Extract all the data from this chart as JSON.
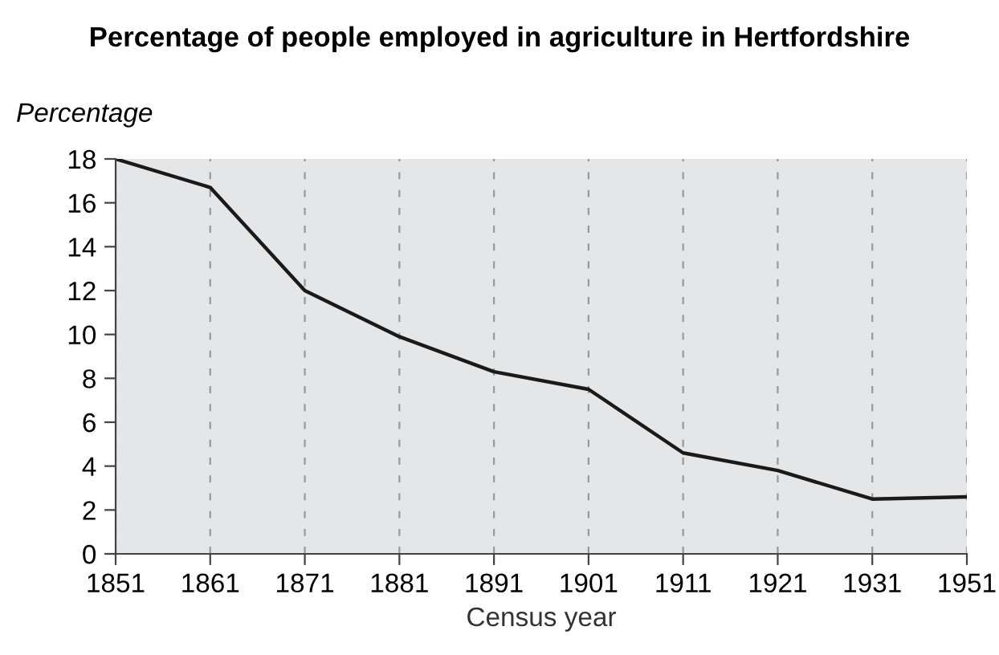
{
  "chart_data": {
    "type": "line",
    "title": "Percentage of people employed in agriculture in Hertfordshire",
    "xlabel": "Census year",
    "ylabel": "Percentage",
    "categories": [
      "1851",
      "1861",
      "1871",
      "1881",
      "1891",
      "1901",
      "1911",
      "1921",
      "1931",
      "1951"
    ],
    "series": [
      {
        "color": "#1a1a1a",
        "values": [
          18,
          16.7,
          12.0,
          9.9,
          8.3,
          7.5,
          4.6,
          3.8,
          2.5,
          2.6
        ]
      }
    ],
    "ylim": [
      0,
      18
    ],
    "yticks": [
      0,
      2,
      4,
      6,
      8,
      10,
      12,
      14,
      16,
      18
    ],
    "grid": "x",
    "marker": "none",
    "line_style": "solid"
  }
}
